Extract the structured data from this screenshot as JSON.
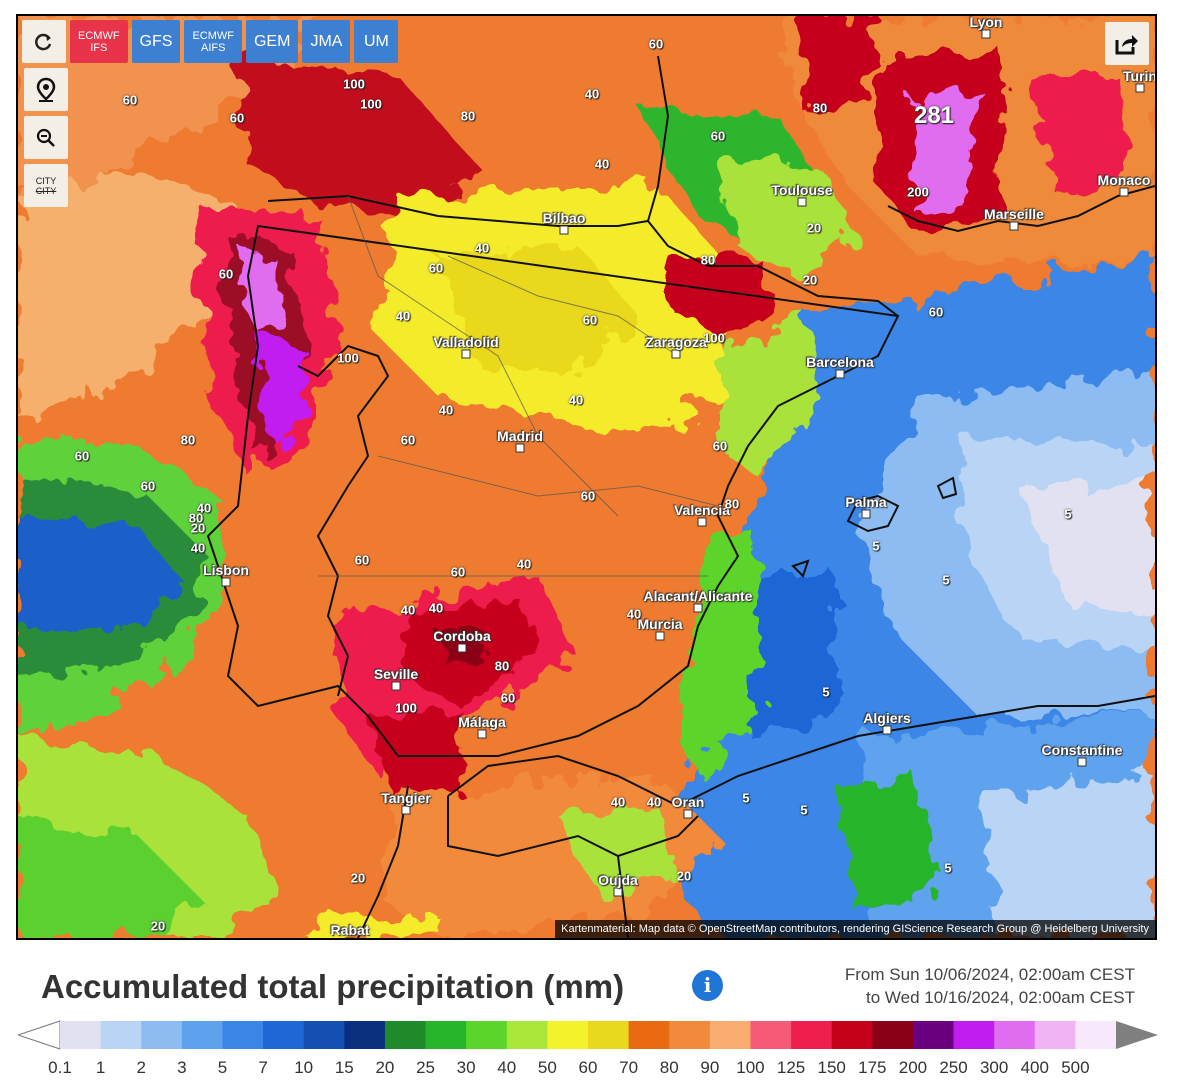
{
  "toolbar": {
    "refresh_icon": "refresh-icon",
    "models": [
      {
        "label": "ECMWF IFS",
        "active": true
      },
      {
        "label": "GFS",
        "active": false
      },
      {
        "label": "ECMWF AIFS",
        "active": false
      },
      {
        "label": "GEM",
        "active": false
      },
      {
        "label": "JMA",
        "active": false
      },
      {
        "label": "UM",
        "active": false
      }
    ],
    "side_buttons": [
      "location-pin-icon",
      "zoom-out-icon",
      "city-toggle-icon"
    ],
    "city_toggle_label": "CITY",
    "share_icon": "share-icon"
  },
  "map": {
    "cities": [
      {
        "name": "Lyon"
      },
      {
        "name": "Turin"
      },
      {
        "name": "Toulouse"
      },
      {
        "name": "Monaco"
      },
      {
        "name": "Marseille"
      },
      {
        "name": "Bilbao"
      },
      {
        "name": "Valladolid"
      },
      {
        "name": "Zaragoza"
      },
      {
        "name": "Barcelona"
      },
      {
        "name": "Madrid"
      },
      {
        "name": "Palma"
      },
      {
        "name": "Valencia"
      },
      {
        "name": "Lisbon"
      },
      {
        "name": "Alacant/Alicante"
      },
      {
        "name": "Murcia"
      },
      {
        "name": "Cordoba"
      },
      {
        "name": "Seville"
      },
      {
        "name": "Málaga"
      },
      {
        "name": "Algiers"
      },
      {
        "name": "Constantine"
      },
      {
        "name": "Tangier"
      },
      {
        "name": "Oran"
      },
      {
        "name": "Oujda"
      },
      {
        "name": "Rabat"
      }
    ],
    "values": [
      "60",
      "100",
      "80",
      "100",
      "40",
      "60",
      "281",
      "80",
      "60",
      "40",
      "200",
      "60",
      "60",
      "40",
      "80",
      "60",
      "100",
      "40",
      "60",
      "20",
      "60",
      "100",
      "40",
      "60",
      "20",
      "40",
      "60",
      "80",
      "80",
      "60",
      "40",
      "5",
      "60",
      "40",
      "60",
      "40",
      "80",
      "5",
      "5",
      "20",
      "40",
      "60",
      "40",
      "5",
      "60",
      "100",
      "80",
      "60",
      "40",
      "20",
      "5",
      "5",
      "20",
      "40",
      "5",
      "40",
      "20"
    ],
    "attribution": "Kartenmaterial: Map data © OpenStreetMap contributors, rendering GIScience Research Group @ Heidelberg University"
  },
  "title": "Accumulated total precipitation (mm)",
  "period": {
    "from": "From Sun 10/06/2024, 02:00am CEST",
    "to": "to Wed 10/16/2024, 02:00am CEST"
  },
  "legend": {
    "ticks": [
      "0.1",
      "1",
      "2",
      "3",
      "5",
      "7",
      "10",
      "15",
      "20",
      "25",
      "30",
      "40",
      "50",
      "60",
      "70",
      "80",
      "90",
      "100",
      "125",
      "150",
      "175",
      "200",
      "250",
      "300",
      "400",
      "500"
    ],
    "colors": [
      "#e1e1f2",
      "#b9d4f4",
      "#8cbcf2",
      "#5ea2ee",
      "#3a86e6",
      "#1f66d6",
      "#164fb2",
      "#0a2f7f",
      "#1f8a2a",
      "#27b52a",
      "#5bd42c",
      "#a8e63a",
      "#f4f22a",
      "#e9d81c",
      "#ea6a12",
      "#f28a3b",
      "#f8ac70",
      "#f55b77",
      "#ee1f4d",
      "#c6001b",
      "#8b0016",
      "#6a007f",
      "#c11df0",
      "#e06cf0",
      "#f0b4f5",
      "#f8e8fb",
      "#cbcbcb",
      "#7f7f7f"
    ]
  }
}
